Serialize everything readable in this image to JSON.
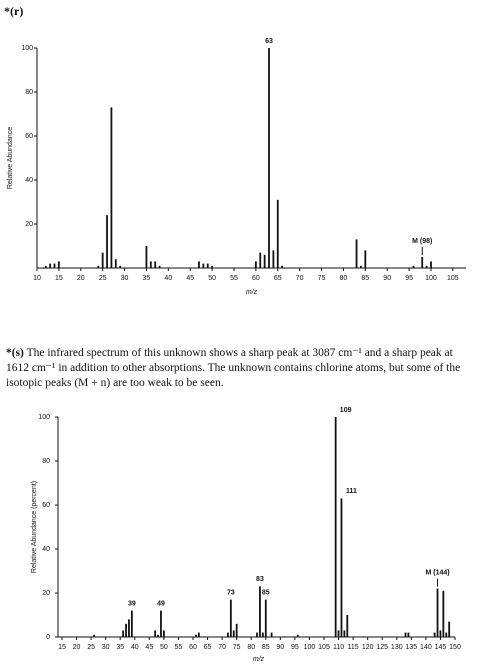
{
  "chart_data": [
    {
      "type": "bar",
      "problem_label": "*(r)",
      "ylabel": "Relative Abundance",
      "xlabel": "m/z",
      "x": [
        12,
        13,
        14,
        15,
        24,
        25,
        26,
        27,
        28,
        29,
        35,
        36,
        37,
        38,
        47,
        48,
        49,
        50,
        60,
        61,
        62,
        63,
        64,
        65,
        66,
        83,
        84,
        85,
        96,
        98,
        99,
        100
      ],
      "values": [
        1,
        2,
        2,
        3,
        1,
        7,
        24,
        73,
        4,
        1,
        10,
        3,
        3,
        1,
        3,
        2,
        2,
        1,
        3,
        7,
        6,
        100,
        8,
        31,
        1,
        13,
        1,
        8,
        1,
        5,
        1,
        3
      ],
      "color": "#111111",
      "xlim": [
        10,
        108
      ],
      "xticks": [
        10,
        15,
        20,
        25,
        30,
        35,
        40,
        45,
        50,
        55,
        60,
        65,
        70,
        75,
        80,
        85,
        90,
        95,
        100,
        105
      ],
      "ylim": [
        0,
        100
      ],
      "yticks": [
        20,
        40,
        60,
        80,
        100
      ],
      "annotations": [
        {
          "x": 63,
          "label": "63"
        },
        {
          "x": 98,
          "label": "M (98)"
        }
      ]
    },
    {
      "type": "bar",
      "problem_label": "*(s)",
      "description": "The infrared spectrum of this unknown shows a sharp peak at 3087 cm⁻¹ and a sharp peak at 1612 cm⁻¹ in addition to other absorptions. The unknown contains chlorine atoms, but some of the isotopic peaks (M + n) are too weak to be seen.",
      "ylabel": "Relative Abundance (percent)",
      "xlabel": "m/z",
      "x": [
        26,
        36,
        37,
        38,
        39,
        47,
        48,
        49,
        50,
        61,
        62,
        72,
        73,
        74,
        75,
        82,
        83,
        84,
        85,
        87,
        96,
        109,
        110,
        111,
        112,
        113,
        133,
        134,
        143,
        144,
        145,
        146,
        147,
        148
      ],
      "values": [
        1,
        3,
        6,
        8,
        12,
        3,
        1,
        12,
        3,
        1,
        2,
        2,
        17,
        3,
        6,
        2,
        23,
        2,
        17,
        2,
        1,
        100,
        3,
        63,
        3,
        10,
        2,
        2,
        2,
        22,
        3,
        21,
        2,
        7
      ],
      "color": "#111111",
      "xlim": [
        15,
        150
      ],
      "xticks": [
        15,
        20,
        25,
        30,
        35,
        40,
        45,
        50,
        55,
        60,
        65,
        70,
        75,
        80,
        85,
        90,
        95,
        100,
        105,
        110,
        115,
        120,
        125,
        130,
        135,
        140,
        145,
        150
      ],
      "ylim": [
        0,
        100
      ],
      "yticks": [
        0,
        20,
        40,
        60,
        80,
        100
      ],
      "annotations": [
        {
          "x": 39,
          "label": "39"
        },
        {
          "x": 49,
          "label": "49"
        },
        {
          "x": 73,
          "label": "73"
        },
        {
          "x": 83,
          "label": "83"
        },
        {
          "x": 85,
          "label": "85"
        },
        {
          "x": 109,
          "label": "109"
        },
        {
          "x": 111,
          "label": "111"
        },
        {
          "x": 144,
          "label": "M (144)"
        }
      ]
    }
  ]
}
